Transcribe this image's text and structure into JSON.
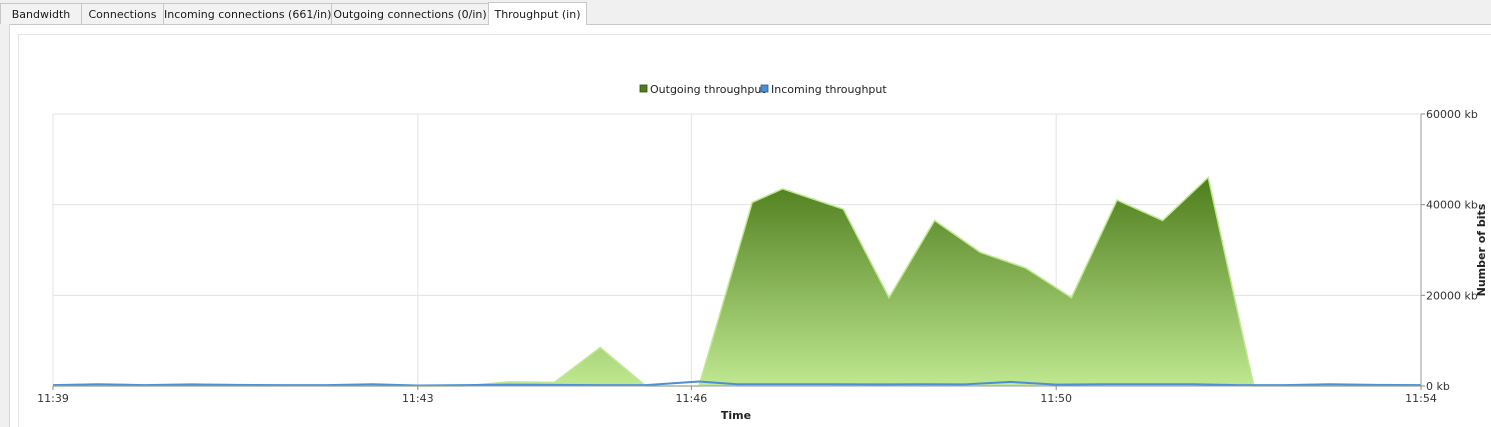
{
  "tabs": [
    {
      "label": "Bandwidth",
      "active": false
    },
    {
      "label": "Connections",
      "active": false
    },
    {
      "label": "Incoming connections (661/in)",
      "active": false
    },
    {
      "label": "Outgoing connections (0/in)",
      "active": false
    },
    {
      "label": "Throughput (in)",
      "active": true
    }
  ],
  "chart_data": {
    "type": "area",
    "title": "",
    "xlabel": "Time",
    "ylabel": "Number of bits",
    "x_ticks": [
      "11:39",
      "11:43",
      "11:46",
      "11:50",
      "11:54"
    ],
    "y_ticks": [
      "0 kb",
      "20000 kb",
      "40000 kb",
      "60000 kb"
    ],
    "ylim": [
      0,
      60000
    ],
    "grid": true,
    "legend_position": "top-center",
    "y_axis_side": "right",
    "series": [
      {
        "name": "Outgoing throughput",
        "color": "#4e7d1c",
        "light_color": "#bfe890",
        "points": [
          [
            "11:39:00",
            0
          ],
          [
            "11:43:30",
            0
          ],
          [
            "11:44:00",
            900
          ],
          [
            "11:44:30",
            800
          ],
          [
            "11:45:00",
            8500
          ],
          [
            "11:45:30",
            0
          ],
          [
            "11:46:05",
            0
          ],
          [
            "11:46:40",
            40500
          ],
          [
            "11:47:00",
            43500
          ],
          [
            "11:47:40",
            39000
          ],
          [
            "11:48:10",
            19500
          ],
          [
            "11:48:40",
            36500
          ],
          [
            "11:49:10",
            29500
          ],
          [
            "11:49:40",
            26000
          ],
          [
            "11:50:10",
            19500
          ],
          [
            "11:50:40",
            41000
          ],
          [
            "11:51:10",
            36500
          ],
          [
            "11:51:40",
            46000
          ],
          [
            "11:52:10",
            0
          ],
          [
            "11:54:00",
            0
          ]
        ]
      },
      {
        "name": "Incoming throughput",
        "color": "#4d8fd6",
        "points": [
          [
            "11:39:00",
            200
          ],
          [
            "11:39:30",
            400
          ],
          [
            "11:40:00",
            200
          ],
          [
            "11:40:30",
            350
          ],
          [
            "11:41:00",
            250
          ],
          [
            "11:41:30",
            200
          ],
          [
            "11:42:00",
            200
          ],
          [
            "11:42:30",
            400
          ],
          [
            "11:43:00",
            100
          ],
          [
            "11:43:30",
            200
          ],
          [
            "11:44:00",
            300
          ],
          [
            "11:45:00",
            200
          ],
          [
            "11:45:30",
            200
          ],
          [
            "11:46:05",
            1000
          ],
          [
            "11:46:30",
            400
          ],
          [
            "11:47:00",
            400
          ],
          [
            "11:47:30",
            400
          ],
          [
            "11:48:00",
            350
          ],
          [
            "11:48:30",
            400
          ],
          [
            "11:49:00",
            350
          ],
          [
            "11:49:30",
            900
          ],
          [
            "11:50:00",
            300
          ],
          [
            "11:50:30",
            400
          ],
          [
            "11:51:00",
            400
          ],
          [
            "11:51:30",
            400
          ],
          [
            "11:52:00",
            200
          ],
          [
            "11:52:30",
            200
          ],
          [
            "11:53:00",
            400
          ],
          [
            "11:53:30",
            250
          ],
          [
            "11:54:00",
            200
          ]
        ]
      }
    ]
  }
}
